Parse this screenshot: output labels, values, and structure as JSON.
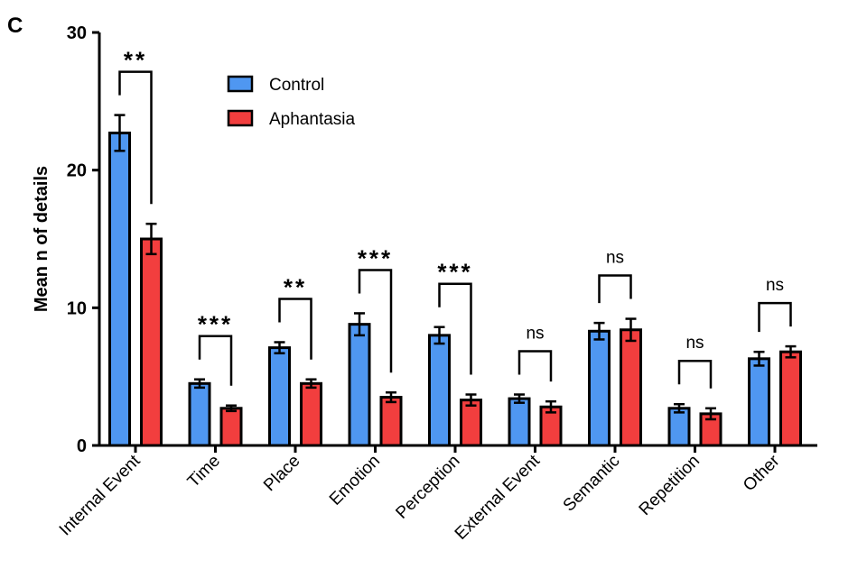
{
  "chart_data": {
    "type": "bar",
    "panel_label": "C",
    "ylabel": "Mean n of details",
    "categories": [
      "Internal Event",
      "Time",
      "Place",
      "Emotion",
      "Perception",
      "External Event",
      "Semantic",
      "Repetition",
      "Other"
    ],
    "series": [
      {
        "name": "Control",
        "color": "#4f97f1",
        "values": [
          22.7,
          4.5,
          7.1,
          8.8,
          8.0,
          3.4,
          8.3,
          2.7,
          6.3
        ],
        "errors": [
          1.3,
          0.3,
          0.4,
          0.8,
          0.6,
          0.3,
          0.6,
          0.3,
          0.5
        ]
      },
      {
        "name": "Aphantasia",
        "color": "#f23e3e",
        "values": [
          15.0,
          2.7,
          4.5,
          3.5,
          3.3,
          2.8,
          8.4,
          2.3,
          6.8
        ],
        "errors": [
          1.1,
          0.2,
          0.3,
          0.35,
          0.4,
          0.4,
          0.8,
          0.4,
          0.4
        ]
      }
    ],
    "significance": [
      "**",
      "***",
      "**",
      "***",
      "***",
      "ns",
      "ns",
      "ns",
      "ns"
    ],
    "ylim": [
      0,
      30
    ],
    "yticks": [
      0,
      10,
      20,
      30
    ]
  }
}
